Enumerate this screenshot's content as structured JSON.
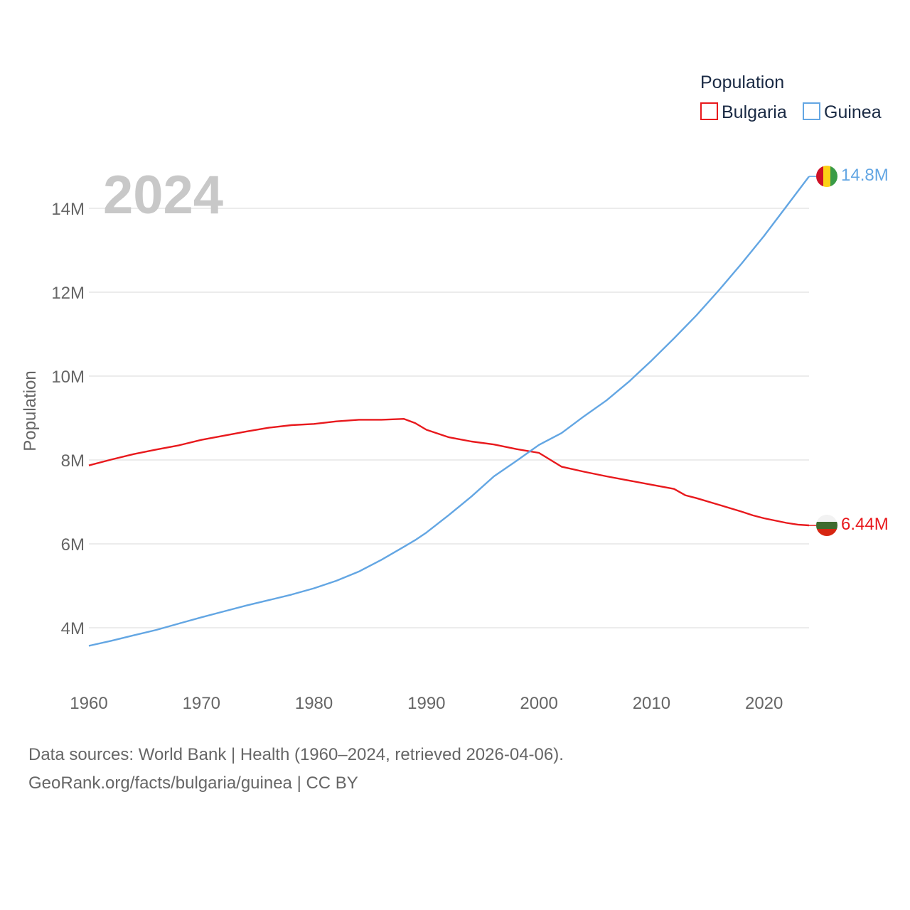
{
  "chart_data": {
    "type": "line",
    "year_label": "2024",
    "ylabel": "Population",
    "xlim": [
      1960,
      2024
    ],
    "ylim": [
      2800000,
      15600000
    ],
    "x_ticks": [
      1960,
      1970,
      1980,
      1990,
      2000,
      2010,
      2020
    ],
    "x_tick_labels": [
      "1960",
      "1970",
      "1980",
      "1990",
      "2000",
      "2010",
      "2020"
    ],
    "y_ticks": [
      4000000,
      6000000,
      8000000,
      10000000,
      12000000,
      14000000
    ],
    "y_tick_labels": [
      "4M",
      "6M",
      "8M",
      "10M",
      "12M",
      "14M"
    ],
    "legend": {
      "title": "Population",
      "position": "top-right"
    },
    "series": [
      {
        "name": "Bulgaria",
        "color": "#e8191d",
        "end_label": "6.44M",
        "flag": "bulgaria-flag",
        "points": [
          [
            1960,
            7870000
          ],
          [
            1962,
            8010000
          ],
          [
            1964,
            8140000
          ],
          [
            1966,
            8250000
          ],
          [
            1968,
            8350000
          ],
          [
            1970,
            8480000
          ],
          [
            1972,
            8580000
          ],
          [
            1974,
            8680000
          ],
          [
            1976,
            8770000
          ],
          [
            1978,
            8830000
          ],
          [
            1980,
            8860000
          ],
          [
            1982,
            8920000
          ],
          [
            1984,
            8960000
          ],
          [
            1986,
            8960000
          ],
          [
            1988,
            8980000
          ],
          [
            1989,
            8880000
          ],
          [
            1990,
            8720000
          ],
          [
            1992,
            8540000
          ],
          [
            1994,
            8440000
          ],
          [
            1996,
            8370000
          ],
          [
            1998,
            8260000
          ],
          [
            2000,
            8170000
          ],
          [
            2002,
            7840000
          ],
          [
            2004,
            7720000
          ],
          [
            2006,
            7610000
          ],
          [
            2008,
            7510000
          ],
          [
            2010,
            7410000
          ],
          [
            2012,
            7310000
          ],
          [
            2013,
            7160000
          ],
          [
            2014,
            7090000
          ],
          [
            2016,
            6930000
          ],
          [
            2018,
            6770000
          ],
          [
            2019,
            6680000
          ],
          [
            2020,
            6610000
          ],
          [
            2022,
            6500000
          ],
          [
            2023,
            6460000
          ],
          [
            2024,
            6440000
          ]
        ]
      },
      {
        "name": "Guinea",
        "color": "#63a6e3",
        "end_label": "14.8M",
        "flag": "guinea-flag",
        "points": [
          [
            1960,
            3570000
          ],
          [
            1962,
            3690000
          ],
          [
            1964,
            3820000
          ],
          [
            1966,
            3950000
          ],
          [
            1968,
            4100000
          ],
          [
            1970,
            4250000
          ],
          [
            1972,
            4390000
          ],
          [
            1974,
            4530000
          ],
          [
            1976,
            4660000
          ],
          [
            1978,
            4790000
          ],
          [
            1980,
            4940000
          ],
          [
            1982,
            5120000
          ],
          [
            1984,
            5340000
          ],
          [
            1986,
            5620000
          ],
          [
            1988,
            5930000
          ],
          [
            1989,
            6090000
          ],
          [
            1990,
            6270000
          ],
          [
            1992,
            6690000
          ],
          [
            1994,
            7130000
          ],
          [
            1996,
            7610000
          ],
          [
            1998,
            7980000
          ],
          [
            2000,
            8360000
          ],
          [
            2002,
            8640000
          ],
          [
            2004,
            9040000
          ],
          [
            2006,
            9420000
          ],
          [
            2008,
            9870000
          ],
          [
            2010,
            10370000
          ],
          [
            2012,
            10900000
          ],
          [
            2014,
            11450000
          ],
          [
            2016,
            12050000
          ],
          [
            2018,
            12680000
          ],
          [
            2020,
            13340000
          ],
          [
            2022,
            14050000
          ],
          [
            2024,
            14760000
          ]
        ]
      }
    ]
  },
  "footer": {
    "source_line": "Data sources: World Bank | Health (1960–2024, retrieved 2026-04-06).",
    "attribution_line": "GeoRank.org/facts/bulgaria/guinea | CC BY"
  }
}
